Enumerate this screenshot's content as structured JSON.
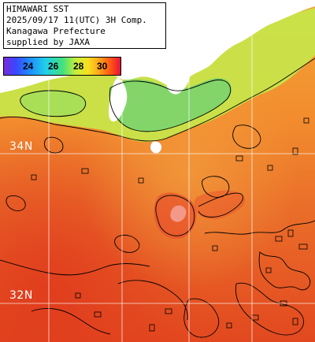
{
  "header": {
    "line1": "HIMAWARI SST",
    "line2": "2025/09/17 11(UTC) 3H Comp.",
    "line3": "Kanagawa Prefecture",
    "line4": "supplied by JAXA"
  },
  "legend": {
    "ticks": [
      "24",
      "26",
      "28",
      "30"
    ]
  },
  "grid": {
    "lat_labels": [
      "34N",
      "32N"
    ]
  },
  "colors": {
    "land": "#ffffff",
    "sea_warm": "#e6652a",
    "sea_hot": "#e23a1e",
    "sea_cool": "#f2a236",
    "coastal_green": "#8edc6a",
    "coastal_yellow": "#d8e84a",
    "grid_line": "#ffffff",
    "contour": "#000000"
  }
}
